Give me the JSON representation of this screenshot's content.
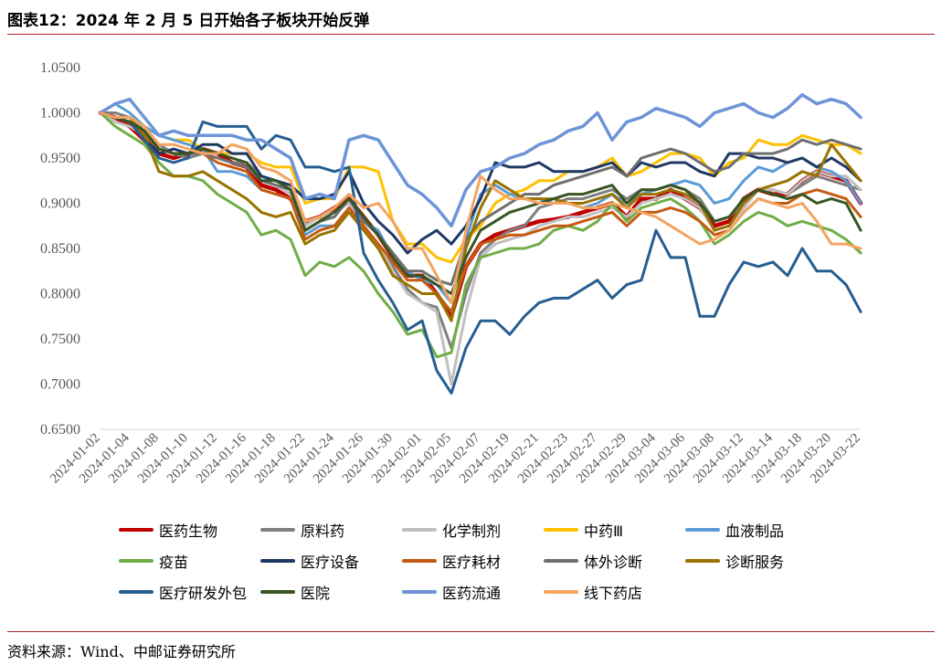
{
  "header": {
    "title": "图表12：2024 年 2 月 5 日开始各子板块开始反弹"
  },
  "footer": {
    "source": "资料来源：Wind、中邮证券研究所"
  },
  "chart_data": {
    "type": "line",
    "ylim": [
      0.65,
      1.05
    ],
    "yticks": [
      "0.6500",
      "0.7000",
      "0.7500",
      "0.8000",
      "0.8500",
      "0.9000",
      "0.9500",
      "1.0000",
      "1.0500"
    ],
    "x": [
      "2024-01-02",
      "2024-01-03",
      "2024-01-04",
      "2024-01-05",
      "2024-01-08",
      "2024-01-09",
      "2024-01-10",
      "2024-01-11",
      "2024-01-12",
      "2024-01-15",
      "2024-01-16",
      "2024-01-17",
      "2024-01-18",
      "2024-01-19",
      "2024-01-22",
      "2024-01-23",
      "2024-01-24",
      "2024-01-25",
      "2024-01-26",
      "2024-01-29",
      "2024-01-30",
      "2024-01-31",
      "2024-02-01",
      "2024-02-02",
      "2024-02-05",
      "2024-02-06",
      "2024-02-07",
      "2024-02-08",
      "2024-02-19",
      "2024-02-20",
      "2024-02-21",
      "2024-02-22",
      "2024-02-23",
      "2024-02-26",
      "2024-02-27",
      "2024-02-28",
      "2024-02-29",
      "2024-03-01",
      "2024-03-04",
      "2024-03-05",
      "2024-03-06",
      "2024-03-07",
      "2024-03-08",
      "2024-03-11",
      "2024-03-12",
      "2024-03-13",
      "2024-03-14",
      "2024-03-15",
      "2024-03-18",
      "2024-03-19",
      "2024-03-20",
      "2024-03-21",
      "2024-03-22"
    ],
    "xtick_labels": [
      "2024-01-02",
      "2024-01-04",
      "2024-01-08",
      "2024-01-10",
      "2024-01-12",
      "2024-01-16",
      "2024-01-18",
      "2024-01-22",
      "2024-01-24",
      "2024-01-26",
      "2024-01-30",
      "2024-02-01",
      "2024-02-05",
      "2024-02-07",
      "2024-02-19",
      "2024-02-21",
      "2024-02-23",
      "2024-02-27",
      "2024-02-29",
      "2024-03-04",
      "2024-03-06",
      "2024-03-08",
      "2024-03-12",
      "2024-03-14",
      "2024-03-18",
      "2024-03-20",
      "2024-03-22"
    ],
    "series": [
      {
        "name": "医药生物",
        "color": "#c00000",
        "width": 4.5,
        "values": [
          1.0,
          0.995,
          0.985,
          0.97,
          0.955,
          0.95,
          0.955,
          0.96,
          0.955,
          0.945,
          0.94,
          0.92,
          0.915,
          0.905,
          0.88,
          0.885,
          0.895,
          0.905,
          0.885,
          0.865,
          0.84,
          0.82,
          0.82,
          0.8,
          0.775,
          0.83,
          0.855,
          0.865,
          0.87,
          0.875,
          0.88,
          0.882,
          0.885,
          0.89,
          0.895,
          0.9,
          0.885,
          0.905,
          0.905,
          0.915,
          0.905,
          0.895,
          0.875,
          0.88,
          0.905,
          0.915,
          0.91,
          0.91,
          0.925,
          0.935,
          0.93,
          0.925,
          0.9
        ]
      },
      {
        "name": "原料药",
        "color": "#7f7f7f",
        "width": 3,
        "values": [
          1.0,
          1.0,
          0.995,
          0.98,
          0.965,
          0.955,
          0.95,
          0.955,
          0.95,
          0.945,
          0.945,
          0.93,
          0.925,
          0.915,
          0.88,
          0.885,
          0.89,
          0.905,
          0.875,
          0.855,
          0.83,
          0.805,
          0.79,
          0.785,
          0.74,
          0.8,
          0.845,
          0.86,
          0.87,
          0.875,
          0.895,
          0.9,
          0.905,
          0.905,
          0.91,
          0.915,
          0.905,
          0.915,
          0.915,
          0.92,
          0.915,
          0.905,
          0.88,
          0.885,
          0.9,
          0.915,
          0.915,
          0.91,
          0.92,
          0.93,
          0.925,
          0.92,
          0.915
        ]
      },
      {
        "name": "化学制剂",
        "color": "#bfbfbf",
        "width": 3,
        "values": [
          1.0,
          0.99,
          0.985,
          0.975,
          0.96,
          0.955,
          0.955,
          0.955,
          0.95,
          0.945,
          0.94,
          0.925,
          0.92,
          0.91,
          0.875,
          0.885,
          0.89,
          0.9,
          0.87,
          0.855,
          0.825,
          0.8,
          0.79,
          0.78,
          0.7,
          0.78,
          0.84,
          0.855,
          0.86,
          0.865,
          0.875,
          0.88,
          0.885,
          0.885,
          0.89,
          0.895,
          0.885,
          0.9,
          0.905,
          0.91,
          0.905,
          0.895,
          0.87,
          0.875,
          0.895,
          0.915,
          0.915,
          0.91,
          0.925,
          0.935,
          0.93,
          0.93,
          0.915
        ]
      },
      {
        "name": "中药Ⅲ",
        "color": "#ffc000",
        "width": 3,
        "values": [
          1.0,
          0.995,
          0.995,
          0.985,
          0.975,
          0.97,
          0.97,
          0.96,
          0.955,
          0.955,
          0.955,
          0.945,
          0.94,
          0.94,
          0.9,
          0.905,
          0.905,
          0.94,
          0.94,
          0.935,
          0.88,
          0.855,
          0.855,
          0.84,
          0.835,
          0.86,
          0.875,
          0.9,
          0.91,
          0.915,
          0.925,
          0.925,
          0.935,
          0.935,
          0.94,
          0.95,
          0.93,
          0.935,
          0.945,
          0.955,
          0.955,
          0.95,
          0.93,
          0.945,
          0.95,
          0.97,
          0.965,
          0.965,
          0.975,
          0.97,
          0.965,
          0.965,
          0.955
        ]
      },
      {
        "name": "血液制品",
        "color": "#5b9bd5",
        "width": 3,
        "values": [
          1.0,
          1.01,
          1.0,
          0.985,
          0.975,
          0.97,
          0.965,
          0.96,
          0.935,
          0.935,
          0.93,
          0.915,
          0.91,
          0.905,
          0.865,
          0.875,
          0.875,
          0.89,
          0.88,
          0.87,
          0.84,
          0.825,
          0.815,
          0.81,
          0.79,
          0.86,
          0.91,
          0.92,
          0.91,
          0.905,
          0.905,
          0.9,
          0.9,
          0.895,
          0.9,
          0.91,
          0.9,
          0.91,
          0.915,
          0.92,
          0.925,
          0.92,
          0.9,
          0.905,
          0.925,
          0.94,
          0.935,
          0.945,
          0.95,
          0.94,
          0.935,
          0.925,
          0.9
        ]
      },
      {
        "name": "疫苗",
        "color": "#70ad47",
        "width": 3,
        "values": [
          1.0,
          0.985,
          0.975,
          0.965,
          0.945,
          0.93,
          0.93,
          0.925,
          0.91,
          0.9,
          0.89,
          0.865,
          0.87,
          0.86,
          0.82,
          0.835,
          0.83,
          0.84,
          0.825,
          0.8,
          0.78,
          0.755,
          0.76,
          0.73,
          0.735,
          0.81,
          0.84,
          0.845,
          0.85,
          0.85,
          0.855,
          0.87,
          0.875,
          0.87,
          0.88,
          0.9,
          0.88,
          0.895,
          0.9,
          0.905,
          0.895,
          0.88,
          0.855,
          0.865,
          0.88,
          0.89,
          0.885,
          0.875,
          0.88,
          0.875,
          0.87,
          0.86,
          0.845
        ]
      },
      {
        "name": "医疗设备",
        "color": "#1f3864",
        "width": 3,
        "values": [
          1.0,
          0.995,
          0.99,
          0.975,
          0.955,
          0.96,
          0.955,
          0.965,
          0.965,
          0.955,
          0.955,
          0.93,
          0.925,
          0.92,
          0.905,
          0.905,
          0.91,
          0.935,
          0.9,
          0.88,
          0.865,
          0.845,
          0.86,
          0.87,
          0.855,
          0.875,
          0.905,
          0.945,
          0.94,
          0.94,
          0.945,
          0.935,
          0.935,
          0.935,
          0.94,
          0.945,
          0.93,
          0.945,
          0.94,
          0.945,
          0.945,
          0.935,
          0.93,
          0.955,
          0.955,
          0.95,
          0.95,
          0.945,
          0.95,
          0.94,
          0.95,
          0.94,
          0.925
        ]
      },
      {
        "name": "医疗耗材",
        "color": "#c55a11",
        "width": 3,
        "values": [
          1.0,
          0.995,
          0.99,
          0.975,
          0.96,
          0.955,
          0.955,
          0.955,
          0.945,
          0.94,
          0.935,
          0.915,
          0.91,
          0.905,
          0.86,
          0.87,
          0.875,
          0.895,
          0.875,
          0.855,
          0.835,
          0.815,
          0.815,
          0.8,
          0.78,
          0.83,
          0.855,
          0.86,
          0.865,
          0.865,
          0.87,
          0.875,
          0.875,
          0.88,
          0.885,
          0.89,
          0.875,
          0.89,
          0.89,
          0.895,
          0.89,
          0.88,
          0.865,
          0.87,
          0.89,
          0.905,
          0.9,
          0.9,
          0.91,
          0.915,
          0.91,
          0.905,
          0.885
        ]
      },
      {
        "name": "体外诊断",
        "color": "#6f6f6f",
        "width": 3,
        "values": [
          1.0,
          0.995,
          0.99,
          0.98,
          0.96,
          0.955,
          0.955,
          0.955,
          0.95,
          0.945,
          0.94,
          0.925,
          0.92,
          0.915,
          0.87,
          0.88,
          0.885,
          0.905,
          0.88,
          0.865,
          0.845,
          0.825,
          0.825,
          0.815,
          0.81,
          0.86,
          0.88,
          0.89,
          0.9,
          0.91,
          0.91,
          0.92,
          0.925,
          0.93,
          0.935,
          0.94,
          0.93,
          0.95,
          0.955,
          0.96,
          0.955,
          0.945,
          0.935,
          0.94,
          0.955,
          0.955,
          0.955,
          0.96,
          0.97,
          0.965,
          0.97,
          0.965,
          0.96
        ]
      },
      {
        "name": "诊断服务",
        "color": "#997300",
        "width": 3,
        "values": [
          1.0,
          0.995,
          0.995,
          0.975,
          0.935,
          0.93,
          0.93,
          0.935,
          0.925,
          0.915,
          0.905,
          0.89,
          0.885,
          0.89,
          0.855,
          0.865,
          0.87,
          0.89,
          0.87,
          0.85,
          0.82,
          0.81,
          0.8,
          0.8,
          0.77,
          0.85,
          0.895,
          0.925,
          0.915,
          0.905,
          0.905,
          0.905,
          0.9,
          0.9,
          0.905,
          0.91,
          0.895,
          0.91,
          0.91,
          0.915,
          0.91,
          0.9,
          0.87,
          0.875,
          0.9,
          0.915,
          0.92,
          0.925,
          0.935,
          0.93,
          0.965,
          0.945,
          0.925
        ]
      },
      {
        "name": "医疗研发外包",
        "color": "#255e91",
        "width": 3,
        "values": [
          1.0,
          0.995,
          0.99,
          0.97,
          0.95,
          0.945,
          0.95,
          0.99,
          0.985,
          0.985,
          0.985,
          0.96,
          0.975,
          0.97,
          0.94,
          0.94,
          0.935,
          0.94,
          0.845,
          0.815,
          0.79,
          0.76,
          0.77,
          0.715,
          0.69,
          0.74,
          0.77,
          0.77,
          0.755,
          0.775,
          0.79,
          0.795,
          0.795,
          0.805,
          0.815,
          0.795,
          0.81,
          0.815,
          0.87,
          0.84,
          0.84,
          0.775,
          0.775,
          0.81,
          0.835,
          0.83,
          0.835,
          0.82,
          0.85,
          0.825,
          0.825,
          0.81,
          0.78
        ]
      },
      {
        "name": "医院",
        "color": "#375623",
        "width": 3,
        "values": [
          1.0,
          0.995,
          0.99,
          0.98,
          0.96,
          0.955,
          0.955,
          0.96,
          0.955,
          0.95,
          0.945,
          0.925,
          0.925,
          0.915,
          0.87,
          0.88,
          0.89,
          0.905,
          0.885,
          0.865,
          0.84,
          0.82,
          0.82,
          0.81,
          0.8,
          0.84,
          0.87,
          0.88,
          0.89,
          0.895,
          0.9,
          0.905,
          0.91,
          0.91,
          0.915,
          0.92,
          0.9,
          0.915,
          0.915,
          0.92,
          0.915,
          0.9,
          0.88,
          0.885,
          0.905,
          0.915,
          0.91,
          0.905,
          0.91,
          0.9,
          0.905,
          0.9,
          0.87
        ]
      },
      {
        "name": "医药流通",
        "color": "#6e94d8",
        "width": 3.5,
        "values": [
          1.0,
          1.01,
          1.015,
          0.995,
          0.975,
          0.98,
          0.975,
          0.975,
          0.975,
          0.975,
          0.97,
          0.97,
          0.96,
          0.95,
          0.905,
          0.91,
          0.905,
          0.97,
          0.975,
          0.97,
          0.945,
          0.92,
          0.91,
          0.895,
          0.875,
          0.915,
          0.935,
          0.94,
          0.95,
          0.955,
          0.965,
          0.97,
          0.98,
          0.985,
          1.0,
          0.97,
          0.99,
          0.995,
          1.005,
          1.0,
          0.995,
          0.985,
          1.0,
          1.005,
          1.01,
          1.0,
          0.995,
          1.005,
          1.02,
          1.01,
          1.015,
          1.01,
          0.995
        ]
      },
      {
        "name": "线下药店",
        "color": "#f4a460",
        "width": 3,
        "values": [
          1.0,
          0.995,
          0.995,
          0.985,
          0.965,
          0.965,
          0.96,
          0.955,
          0.955,
          0.965,
          0.96,
          0.94,
          0.935,
          0.925,
          0.88,
          0.885,
          0.895,
          0.91,
          0.895,
          0.9,
          0.88,
          0.85,
          0.85,
          0.82,
          0.79,
          0.87,
          0.93,
          0.915,
          0.905,
          0.905,
          0.9,
          0.9,
          0.9,
          0.895,
          0.895,
          0.9,
          0.895,
          0.89,
          0.885,
          0.875,
          0.865,
          0.855,
          0.86,
          0.87,
          0.89,
          0.905,
          0.9,
          0.895,
          0.9,
          0.88,
          0.855,
          0.855,
          0.85
        ]
      }
    ]
  }
}
